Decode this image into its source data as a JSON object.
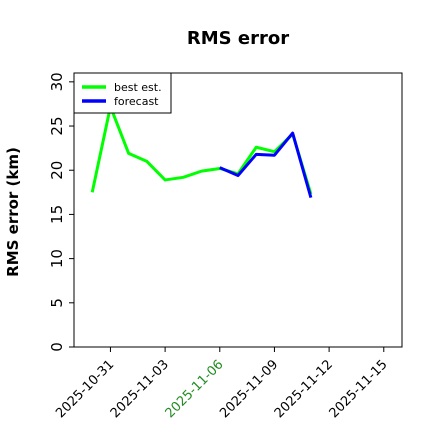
{
  "chart_data": {
    "type": "line",
    "title": "RMS error",
    "ylabel": "RMS error (km)",
    "xlabel": "",
    "ylim": [
      0,
      31
    ],
    "xlim": [
      "2025-10-29",
      "2025-11-16"
    ],
    "yticks": [
      0,
      5,
      10,
      15,
      20,
      25,
      30
    ],
    "xticks": [
      {
        "date": "2025-10-31",
        "label": "2025-10-31",
        "color": "#000000"
      },
      {
        "date": "2025-11-03",
        "label": "2025-11-03",
        "color": "#000000"
      },
      {
        "date": "2025-11-06",
        "label": "2025-11-06",
        "color": "#228b22"
      },
      {
        "date": "2025-11-09",
        "label": "2025-11-09",
        "color": "#000000"
      },
      {
        "date": "2025-11-12",
        "label": "2025-11-12",
        "color": "#000000"
      },
      {
        "date": "2025-11-15",
        "label": "2025-11-15",
        "color": "#000000"
      }
    ],
    "grid": false,
    "legend_position": "top-left",
    "series": [
      {
        "name": "best est.",
        "color": "#00ff00",
        "x": [
          "2025-10-30",
          "2025-10-31",
          "2025-11-01",
          "2025-11-02",
          "2025-11-03",
          "2025-11-04",
          "2025-11-05",
          "2025-11-06",
          "2025-11-07",
          "2025-11-08",
          "2025-11-09",
          "2025-11-10",
          "2025-11-11"
        ],
        "y": [
          17.5,
          27.2,
          21.9,
          21.0,
          18.9,
          19.2,
          19.9,
          20.2,
          19.6,
          22.6,
          22.1,
          24.1,
          17.3
        ]
      },
      {
        "name": "forecast",
        "color": "#0000ff",
        "x": [
          "2025-11-06",
          "2025-11-07",
          "2025-11-08",
          "2025-11-09",
          "2025-11-10",
          "2025-11-11"
        ],
        "y": [
          20.3,
          19.4,
          21.8,
          21.7,
          24.2,
          16.9
        ]
      }
    ]
  }
}
